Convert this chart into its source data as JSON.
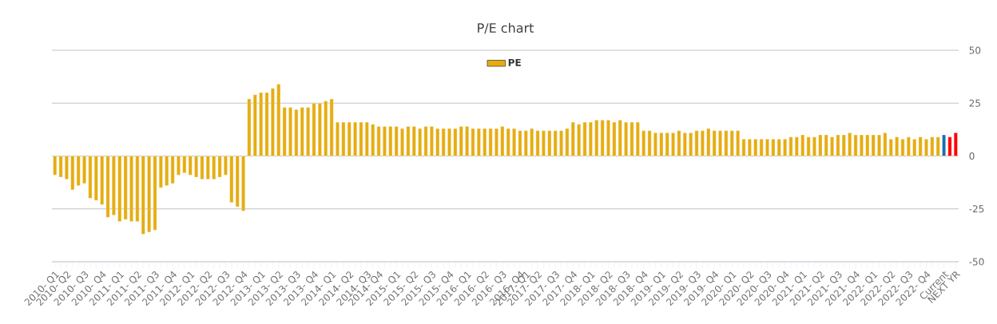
{
  "chart_data": {
    "type": "bar",
    "title": "P/E chart",
    "categories": [
      "2010- Q1",
      null,
      "2010- Q2",
      null,
      null,
      "2010- Q3",
      null,
      null,
      "2010- Q4",
      null,
      null,
      "2011- Q1",
      null,
      null,
      "2011- Q2",
      null,
      null,
      "2011- Q3",
      null,
      null,
      "2011- Q4",
      null,
      null,
      "2012- Q1",
      null,
      null,
      "2012- Q2",
      null,
      null,
      "2012- Q3",
      null,
      null,
      "2012- Q4",
      null,
      null,
      "2013- Q1",
      null,
      null,
      "2013- Q2",
      null,
      null,
      "2013- Q3",
      null,
      null,
      "2013- Q4",
      null,
      null,
      "2014- Q1",
      null,
      null,
      "2014- Q2",
      null,
      null,
      "2014- Q3",
      null,
      "2014- Q4",
      null,
      null,
      "2015- Q1",
      null,
      null,
      "2015- Q2",
      null,
      null,
      "2015- Q3",
      null,
      null,
      "2015- Q4",
      null,
      null,
      "2016- Q1",
      null,
      null,
      "2016- Q2",
      null,
      null,
      "2016- Q3",
      null,
      null,
      "2016- Q4",
      "2017- Q1",
      null,
      "2017- Q2",
      null,
      null,
      "2017- Q3",
      null,
      null,
      "2017- Q4",
      null,
      null,
      "2018- Q1",
      null,
      null,
      "2018- Q2",
      null,
      null,
      "2018- Q3",
      null,
      null,
      "2018- Q4",
      null,
      null,
      "2019- Q1",
      null,
      null,
      "2019- Q2",
      null,
      null,
      "2019- Q3",
      null,
      null,
      "2019- Q4",
      null,
      null,
      "2020- Q1",
      null,
      null,
      "2020- Q2",
      null,
      null,
      "2020- Q3",
      null,
      null,
      "2020- Q4",
      null,
      null,
      "2021- Q1",
      null,
      null,
      "2021- Q2",
      null,
      null,
      "2021- Q3",
      null,
      null,
      "2021- Q4",
      null,
      null,
      "2022- Q1",
      null,
      null,
      "2022- Q2",
      null,
      null,
      "2022- Q3",
      null,
      null,
      "2022- Q4",
      null,
      null,
      "Current",
      null,
      "NEXT YR"
    ],
    "series": [
      {
        "name": "PE",
        "color": "#e6ad12",
        "values": [
          -9,
          -10,
          -11,
          -16,
          -14,
          -13,
          -20,
          -21,
          -23,
          -29,
          -28,
          -31,
          -30,
          -31,
          -31,
          -37,
          -36,
          -35,
          -15,
          -14,
          -13,
          -9,
          -8,
          -9,
          -10,
          -11,
          -11,
          -11,
          -10,
          -9,
          -22,
          -24,
          -26,
          27,
          29,
          30,
          30,
          32,
          34,
          23,
          23,
          22,
          23,
          23,
          25,
          25,
          26,
          27,
          16,
          16,
          16,
          16,
          16,
          16,
          15,
          14,
          14,
          14,
          14,
          13,
          14,
          14,
          13,
          14,
          14,
          13,
          13,
          13,
          13,
          14,
          14,
          13,
          13,
          13,
          13,
          13,
          14,
          13,
          13,
          12,
          12,
          13,
          12,
          12,
          12,
          12,
          12,
          13,
          16,
          15,
          16,
          16,
          17,
          17,
          17,
          16,
          17,
          16,
          16,
          16,
          12,
          12,
          11,
          11,
          11,
          11,
          12,
          11,
          11,
          12,
          12,
          13,
          12,
          12,
          12,
          12,
          12,
          8,
          8,
          8,
          8,
          8,
          8,
          8,
          8,
          9,
          9,
          10,
          9,
          9,
          10,
          10,
          9,
          10,
          10,
          11,
          10,
          10,
          10,
          10,
          10,
          11,
          8,
          9,
          8,
          9,
          8,
          9,
          8,
          9,
          9,
          10,
          9,
          11
        ],
        "colors": [
          "#e6ad12",
          "#e6ad12",
          "#e6ad12",
          "#e6ad12",
          "#e6ad12",
          "#e6ad12",
          "#e6ad12",
          "#e6ad12",
          "#e6ad12",
          "#e6ad12",
          "#e6ad12",
          "#e6ad12",
          "#e6ad12",
          "#e6ad12",
          "#e6ad12",
          "#e6ad12",
          "#e6ad12",
          "#e6ad12",
          "#e6ad12",
          "#e6ad12",
          "#e6ad12",
          "#e6ad12",
          "#e6ad12",
          "#e6ad12",
          "#e6ad12",
          "#e6ad12",
          "#e6ad12",
          "#e6ad12",
          "#e6ad12",
          "#e6ad12",
          "#e6ad12",
          "#e6ad12",
          "#e6ad12",
          "#e6ad12",
          "#e6ad12",
          "#e6ad12",
          "#e6ad12",
          "#e6ad12",
          "#e6ad12",
          "#e6ad12",
          "#e6ad12",
          "#e6ad12",
          "#e6ad12",
          "#e6ad12",
          "#e6ad12",
          "#e6ad12",
          "#e6ad12",
          "#e6ad12",
          "#e6ad12",
          "#e6ad12",
          "#e6ad12",
          "#e6ad12",
          "#e6ad12",
          "#e6ad12",
          "#e6ad12",
          "#e6ad12",
          "#e6ad12",
          "#e6ad12",
          "#e6ad12",
          "#e6ad12",
          "#e6ad12",
          "#e6ad12",
          "#e6ad12",
          "#e6ad12",
          "#e6ad12",
          "#e6ad12",
          "#e6ad12",
          "#e6ad12",
          "#e6ad12",
          "#e6ad12",
          "#e6ad12",
          "#e6ad12",
          "#e6ad12",
          "#e6ad12",
          "#e6ad12",
          "#e6ad12",
          "#e6ad12",
          "#e6ad12",
          "#e6ad12",
          "#e6ad12",
          "#e6ad12",
          "#e6ad12",
          "#e6ad12",
          "#e6ad12",
          "#e6ad12",
          "#e6ad12",
          "#e6ad12",
          "#e6ad12",
          "#e6ad12",
          "#e6ad12",
          "#e6ad12",
          "#e6ad12",
          "#e6ad12",
          "#e6ad12",
          "#e6ad12",
          "#e6ad12",
          "#e6ad12",
          "#e6ad12",
          "#e6ad12",
          "#e6ad12",
          "#e6ad12",
          "#e6ad12",
          "#e6ad12",
          "#e6ad12",
          "#e6ad12",
          "#e6ad12",
          "#e6ad12",
          "#e6ad12",
          "#e6ad12",
          "#e6ad12",
          "#e6ad12",
          "#e6ad12",
          "#e6ad12",
          "#e6ad12",
          "#e6ad12",
          "#e6ad12",
          "#e6ad12",
          "#e6ad12",
          "#e6ad12",
          "#e6ad12",
          "#e6ad12",
          "#e6ad12",
          "#e6ad12",
          "#e6ad12",
          "#e6ad12",
          "#e6ad12",
          "#e6ad12",
          "#e6ad12",
          "#e6ad12",
          "#e6ad12",
          "#e6ad12",
          "#e6ad12",
          "#e6ad12",
          "#e6ad12",
          "#e6ad12",
          "#e6ad12",
          "#e6ad12",
          "#e6ad12",
          "#e6ad12",
          "#e6ad12",
          "#e6ad12",
          "#e6ad12",
          "#e6ad12",
          "#e6ad12",
          "#e6ad12",
          "#e6ad12",
          "#e6ad12",
          "#e6ad12",
          "#e6ad12",
          "#e6ad12",
          "#e6ad12",
          "#1f6fa8",
          "#ff0000",
          "#ff0000"
        ]
      }
    ],
    "ylim": [
      -50,
      50
    ],
    "yticks": [
      -50,
      -25,
      0,
      25,
      50
    ],
    "grid": "y",
    "legend": "top"
  }
}
